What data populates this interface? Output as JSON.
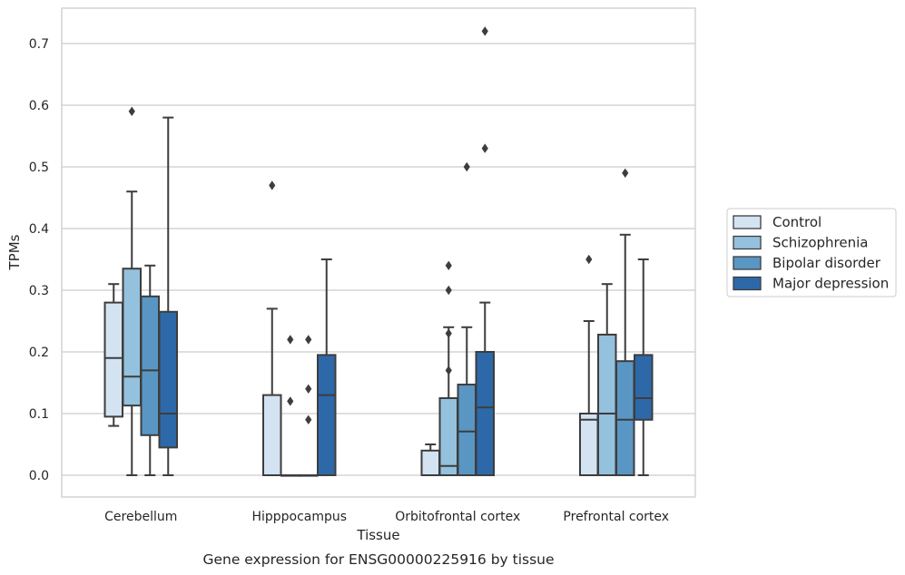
{
  "chart_data": {
    "type": "box",
    "title": "",
    "caption": "Gene expression for ENSG00000225916 by tissue",
    "xlabel": "Tissue",
    "ylabel": "TPMs",
    "ylim": [
      -0.035,
      0.76
    ],
    "yticks": [
      0.0,
      0.1,
      0.2,
      0.3,
      0.4,
      0.5,
      0.6,
      0.7
    ],
    "ytick_labels": [
      "0.0",
      "0.1",
      "0.2",
      "0.3",
      "0.4",
      "0.5",
      "0.6",
      "0.7"
    ],
    "grid": "horizontal",
    "legend_position": "right",
    "categories": [
      "Cerebellum",
      "Hipppocampus",
      "Orbitofrontal cortex",
      "Prefrontal cortex"
    ],
    "series": [
      {
        "name": "Control",
        "color": "#d3e3f1",
        "boxes": [
          {
            "whislo": 0.08,
            "q1": 0.095,
            "med": 0.19,
            "q3": 0.28,
            "whishi": 0.31,
            "fliers": []
          },
          {
            "whislo": 0.0,
            "q1": 0.0,
            "med": 0.0,
            "q3": 0.13,
            "whishi": 0.27,
            "fliers": [
              0.47
            ]
          },
          {
            "whislo": 0.0,
            "q1": 0.0,
            "med": 0.0,
            "q3": 0.04,
            "whishi": 0.05,
            "fliers": []
          },
          {
            "whislo": 0.0,
            "q1": 0.0,
            "med": 0.09,
            "q3": 0.1,
            "whishi": 0.25,
            "fliers": [
              0.35
            ]
          }
        ]
      },
      {
        "name": "Schizophrenia",
        "color": "#94c1dd",
        "boxes": [
          {
            "whislo": 0.0,
            "q1": 0.113,
            "med": 0.16,
            "q3": 0.335,
            "whishi": 0.46,
            "fliers": [
              0.59
            ]
          },
          {
            "whislo": 0.0,
            "q1": 0.0,
            "med": 0.0,
            "q3": 0.0,
            "whishi": 0.0,
            "fliers": [
              0.12,
              0.22
            ]
          },
          {
            "whislo": 0.0,
            "q1": 0.0,
            "med": 0.015,
            "q3": 0.125,
            "whishi": 0.24,
            "fliers": [
              0.17,
              0.23,
              0.3,
              0.34
            ]
          },
          {
            "whislo": 0.0,
            "q1": 0.0,
            "med": 0.1,
            "q3": 0.228,
            "whishi": 0.31,
            "fliers": []
          }
        ]
      },
      {
        "name": "Bipolar disorder",
        "color": "#5996c4",
        "boxes": [
          {
            "whislo": 0.0,
            "q1": 0.065,
            "med": 0.17,
            "q3": 0.29,
            "whishi": 0.34,
            "fliers": []
          },
          {
            "whislo": 0.0,
            "q1": 0.0,
            "med": 0.0,
            "q3": 0.0,
            "whishi": 0.0,
            "fliers": [
              0.09,
              0.14,
              0.22
            ]
          },
          {
            "whislo": 0.0,
            "q1": 0.0,
            "med": 0.071,
            "q3": 0.147,
            "whishi": 0.24,
            "fliers": [
              0.5
            ]
          },
          {
            "whislo": 0.0,
            "q1": 0.0,
            "med": 0.09,
            "q3": 0.185,
            "whishi": 0.39,
            "fliers": [
              0.49
            ]
          }
        ]
      },
      {
        "name": "Major depression",
        "color": "#2d69a8",
        "boxes": [
          {
            "whislo": 0.0,
            "q1": 0.045,
            "med": 0.1,
            "q3": 0.265,
            "whishi": 0.58,
            "fliers": []
          },
          {
            "whislo": 0.0,
            "q1": 0.0,
            "med": 0.13,
            "q3": 0.195,
            "whishi": 0.35,
            "fliers": []
          },
          {
            "whislo": 0.0,
            "q1": 0.0,
            "med": 0.11,
            "q3": 0.2,
            "whishi": 0.28,
            "fliers": [
              0.53,
              0.72
            ]
          },
          {
            "whislo": 0.0,
            "q1": 0.09,
            "med": 0.125,
            "q3": 0.195,
            "whishi": 0.35,
            "fliers": []
          }
        ]
      }
    ]
  }
}
